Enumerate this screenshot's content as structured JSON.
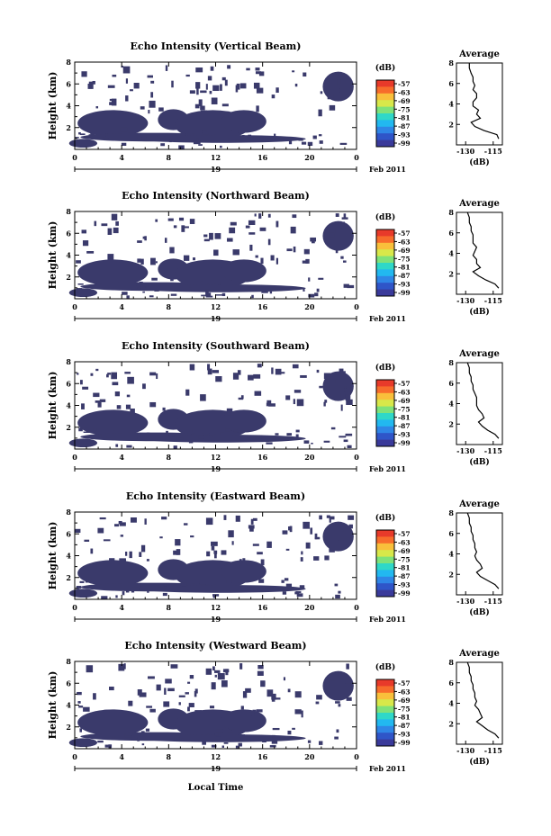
{
  "colors": {
    "blob": "#3a3a6b",
    "colorbar": [
      "#3a3a9a",
      "#2f55c8",
      "#2f86e6",
      "#22b8f0",
      "#2fd8c8",
      "#7fe27a",
      "#d8e84a",
      "#f9bf3b",
      "#f76c2b",
      "#e83a2a"
    ]
  },
  "shared": {
    "date_label": "Feb 2011",
    "day_label": "19",
    "y_axis_label": "Height (km)",
    "colorbar_unit": "(dB)",
    "colorbar_ticks": [
      "-57",
      "-63",
      "-69",
      "-75",
      "-81",
      "-87",
      "-93",
      "-99"
    ],
    "avg_title": "Average",
    "avg_xlabel": "(dB)",
    "bottom_xlabel": "Local Time"
  },
  "chart_data": [
    {
      "type": "heatmap",
      "title": "Echo Intensity (Vertical Beam)",
      "xlim": [
        0,
        24
      ],
      "ylim": [
        0,
        8
      ],
      "x_ticks": [
        "0",
        "4",
        "8",
        "12",
        "16",
        "20",
        "0"
      ],
      "y_ticks": [
        "2",
        "4",
        "6",
        "8"
      ],
      "avg_x_ticks": [
        "-130",
        "-115"
      ],
      "profile": [
        [
          0.6,
          -112
        ],
        [
          1.0,
          -113
        ],
        [
          1.4,
          -120
        ],
        [
          1.8,
          -125
        ],
        [
          2.2,
          -127
        ],
        [
          2.6,
          -122
        ],
        [
          3.0,
          -124
        ],
        [
          3.4,
          -123
        ],
        [
          3.8,
          -126
        ],
        [
          4.2,
          -126
        ],
        [
          4.6,
          -124
        ],
        [
          5.0,
          -124
        ],
        [
          5.4,
          -126
        ],
        [
          5.8,
          -125
        ],
        [
          6.2,
          -126
        ],
        [
          6.6,
          -126
        ],
        [
          7.0,
          -127
        ],
        [
          7.5,
          -128
        ],
        [
          8.0,
          -128
        ]
      ]
    },
    {
      "type": "heatmap",
      "title": "Echo Intensity (Northward Beam)",
      "xlim": [
        0,
        24
      ],
      "ylim": [
        0,
        8
      ],
      "x_ticks": [
        "0",
        "4",
        "8",
        "12",
        "16",
        "20",
        "0"
      ],
      "y_ticks": [
        "2",
        "4",
        "6",
        "8"
      ],
      "avg_x_ticks": [
        "-130",
        "-115"
      ],
      "profile": [
        [
          0.6,
          -112
        ],
        [
          1.0,
          -114
        ],
        [
          1.4,
          -119
        ],
        [
          1.8,
          -123
        ],
        [
          2.2,
          -126
        ],
        [
          2.6,
          -122
        ],
        [
          3.0,
          -124
        ],
        [
          3.4,
          -124
        ],
        [
          3.8,
          -126
        ],
        [
          4.2,
          -125
        ],
        [
          4.6,
          -124
        ],
        [
          5.0,
          -126
        ],
        [
          5.4,
          -126
        ],
        [
          5.8,
          -126
        ],
        [
          6.2,
          -127
        ],
        [
          6.6,
          -127
        ],
        [
          7.0,
          -128
        ],
        [
          7.5,
          -128
        ],
        [
          8.0,
          -129
        ]
      ]
    },
    {
      "type": "heatmap",
      "title": "Echo Intensity (Southward Beam)",
      "xlim": [
        0,
        24
      ],
      "ylim": [
        0,
        8
      ],
      "x_ticks": [
        "0",
        "4",
        "8",
        "12",
        "16",
        "20",
        "0"
      ],
      "y_ticks": [
        "2",
        "4",
        "6",
        "8"
      ],
      "avg_x_ticks": [
        "-130",
        "-115"
      ],
      "profile": [
        [
          0.6,
          -112
        ],
        [
          1.0,
          -114
        ],
        [
          1.4,
          -118
        ],
        [
          1.8,
          -121
        ],
        [
          2.2,
          -123
        ],
        [
          2.6,
          -120
        ],
        [
          3.0,
          -121
        ],
        [
          3.4,
          -123
        ],
        [
          3.8,
          -124
        ],
        [
          4.2,
          -124
        ],
        [
          4.6,
          -124
        ],
        [
          5.0,
          -125
        ],
        [
          5.4,
          -126
        ],
        [
          5.8,
          -126
        ],
        [
          6.2,
          -127
        ],
        [
          6.6,
          -127
        ],
        [
          7.0,
          -128
        ],
        [
          7.5,
          -128
        ],
        [
          8.0,
          -129
        ]
      ]
    },
    {
      "type": "heatmap",
      "title": "Echo Intensity (Eastward Beam)",
      "xlim": [
        0,
        24
      ],
      "ylim": [
        0,
        8
      ],
      "x_ticks": [
        "0",
        "4",
        "8",
        "12",
        "16",
        "20",
        "0"
      ],
      "y_ticks": [
        "2",
        "4",
        "6",
        "8"
      ],
      "avg_x_ticks": [
        "-130",
        "-115"
      ],
      "profile": [
        [
          0.6,
          -112
        ],
        [
          1.0,
          -114
        ],
        [
          1.4,
          -118
        ],
        [
          1.8,
          -122
        ],
        [
          2.2,
          -124
        ],
        [
          2.6,
          -121
        ],
        [
          3.0,
          -122
        ],
        [
          3.4,
          -124
        ],
        [
          3.8,
          -125
        ],
        [
          4.2,
          -124
        ],
        [
          4.6,
          -125
        ],
        [
          5.0,
          -125
        ],
        [
          5.4,
          -126
        ],
        [
          5.8,
          -126
        ],
        [
          6.2,
          -127
        ],
        [
          6.6,
          -127
        ],
        [
          7.0,
          -128
        ],
        [
          7.5,
          -128
        ],
        [
          8.0,
          -129
        ]
      ]
    },
    {
      "type": "heatmap",
      "title": "Echo Intensity (Westward Beam)",
      "xlim": [
        0,
        24
      ],
      "ylim": [
        0,
        8
      ],
      "x_ticks": [
        "0",
        "4",
        "8",
        "12",
        "16",
        "20",
        "0"
      ],
      "y_ticks": [
        "2",
        "4",
        "6",
        "8"
      ],
      "avg_x_ticks": [
        "-130",
        "-115"
      ],
      "profile": [
        [
          0.6,
          -112
        ],
        [
          1.0,
          -114
        ],
        [
          1.4,
          -118
        ],
        [
          1.8,
          -121
        ],
        [
          2.2,
          -124
        ],
        [
          2.6,
          -121
        ],
        [
          3.0,
          -122
        ],
        [
          3.4,
          -123
        ],
        [
          3.8,
          -125
        ],
        [
          4.2,
          -124
        ],
        [
          4.6,
          -125
        ],
        [
          5.0,
          -125
        ],
        [
          5.4,
          -126
        ],
        [
          5.8,
          -126
        ],
        [
          6.2,
          -127
        ],
        [
          6.6,
          -127
        ],
        [
          7.0,
          -128
        ],
        [
          7.5,
          -128
        ],
        [
          8.0,
          -129
        ]
      ]
    }
  ]
}
